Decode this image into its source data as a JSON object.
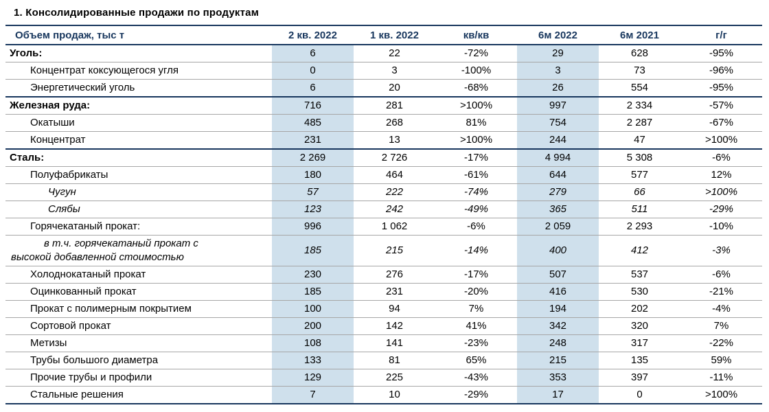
{
  "title": "1. Консолидированные продажи по продуктам",
  "table": {
    "columns": [
      {
        "label": "Объем продаж,  тыс т",
        "highlight": false
      },
      {
        "label": "2 кв. 2022",
        "highlight": true
      },
      {
        "label": "1 кв. 2022",
        "highlight": false
      },
      {
        "label": "кв/кв",
        "highlight": false
      },
      {
        "label": "6м 2022",
        "highlight": true
      },
      {
        "label": "6м 2021",
        "highlight": false
      },
      {
        "label": "г/г",
        "highlight": false
      }
    ],
    "rows": [
      {
        "label": "Уголь:",
        "bold": true,
        "section": true,
        "indent": 0,
        "values": [
          "6",
          "22",
          "-72%",
          "29",
          "628",
          "-95%"
        ]
      },
      {
        "label": "Концентрат коксующегося угля",
        "indent": 1,
        "values": [
          "0",
          "3",
          "-100%",
          "3",
          "73",
          "-96%"
        ]
      },
      {
        "label": "Энергетический уголь",
        "indent": 1,
        "values": [
          "6",
          "20",
          "-68%",
          "26",
          "554",
          "-95%"
        ]
      },
      {
        "label": "Железная руда:",
        "bold": true,
        "section": true,
        "indent": 0,
        "values": [
          "716",
          "281",
          ">100%",
          "997",
          "2 334",
          "-57%"
        ]
      },
      {
        "label": "Окатыши",
        "indent": 1,
        "values": [
          "485",
          "268",
          "81%",
          "754",
          "2 287",
          "-67%"
        ]
      },
      {
        "label": "Концентрат",
        "indent": 1,
        "values": [
          "231",
          "13",
          ">100%",
          "244",
          "47",
          ">100%"
        ]
      },
      {
        "label": "Сталь:",
        "bold": true,
        "section": true,
        "indent": 0,
        "values": [
          "2 269",
          "2 726",
          "-17%",
          "4 994",
          "5 308",
          "-6%"
        ]
      },
      {
        "label": "Полуфабрикаты",
        "indent": 1,
        "values": [
          "180",
          "464",
          "-61%",
          "644",
          "577",
          "12%"
        ]
      },
      {
        "label": "Чугун",
        "indent": 2,
        "italic": true,
        "values": [
          "57",
          "222",
          "-74%",
          "279",
          "66",
          ">100%"
        ]
      },
      {
        "label": "Слябы",
        "indent": 2,
        "italic": true,
        "values": [
          "123",
          "242",
          "-49%",
          "365",
          "511",
          "-29%"
        ]
      },
      {
        "label": "Горячекатаный прокат:",
        "indent": 1,
        "values": [
          "996",
          "1 062",
          "-6%",
          "2 059",
          "2 293",
          "-10%"
        ]
      },
      {
        "label": "в т.ч. горячекатаный прокат с\nвысокой добавленной стоимостью",
        "indent": 2,
        "italic": true,
        "wrap": true,
        "values": [
          "185",
          "215",
          "-14%",
          "400",
          "412",
          "-3%"
        ]
      },
      {
        "label": "Холоднокатаный прокат",
        "indent": 1,
        "values": [
          "230",
          "276",
          "-17%",
          "507",
          "537",
          "-6%"
        ]
      },
      {
        "label": "Оцинкованный прокат",
        "indent": 1,
        "values": [
          "185",
          "231",
          "-20%",
          "416",
          "530",
          "-21%"
        ]
      },
      {
        "label": "Прокат с полимерным покрытием",
        "indent": 1,
        "values": [
          "100",
          "94",
          "7%",
          "194",
          "202",
          "-4%"
        ]
      },
      {
        "label": "Сортовой прокат",
        "indent": 1,
        "values": [
          "200",
          "142",
          "41%",
          "342",
          "320",
          "7%"
        ]
      },
      {
        "label": "Метизы",
        "indent": 1,
        "values": [
          "108",
          "141",
          "-23%",
          "248",
          "317",
          "-22%"
        ]
      },
      {
        "label": "Трубы большого диаметра",
        "indent": 1,
        "values": [
          "133",
          "81",
          "65%",
          "215",
          "135",
          "59%"
        ]
      },
      {
        "label": "Прочие трубы и профили",
        "indent": 1,
        "values": [
          "129",
          "225",
          "-43%",
          "353",
          "397",
          "-11%"
        ]
      },
      {
        "label": "Стальные решения",
        "indent": 1,
        "values": [
          "7",
          "10",
          "-29%",
          "17",
          "0",
          ">100%"
        ]
      }
    ]
  },
  "colors": {
    "column_highlight": "#cfe0ec",
    "table_border": "#17365d",
    "row_separator": "#a6a6a6",
    "header_text": "#17365d"
  }
}
